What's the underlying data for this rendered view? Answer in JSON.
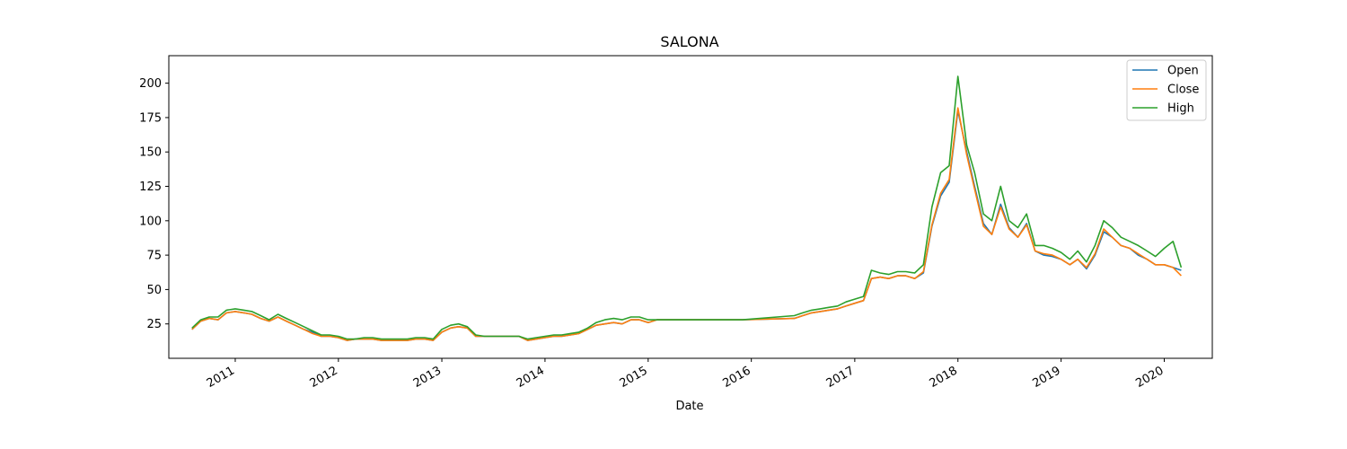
{
  "chart_data": {
    "type": "line",
    "title": "SALONA",
    "xlabel": "Date",
    "ylabel": "",
    "ylim": [
      0,
      220
    ],
    "xlim": [
      "2010-05-11",
      "2020-06-19"
    ],
    "y_ticks": [
      25,
      50,
      75,
      100,
      125,
      150,
      175,
      200
    ],
    "x_ticks": [
      {
        "date": "2011-01-01",
        "label": "2011"
      },
      {
        "date": "2012-01-01",
        "label": "2012"
      },
      {
        "date": "2013-01-01",
        "label": "2013"
      },
      {
        "date": "2014-01-01",
        "label": "2014"
      },
      {
        "date": "2015-01-01",
        "label": "2015"
      },
      {
        "date": "2016-01-01",
        "label": "2016"
      },
      {
        "date": "2017-01-01",
        "label": "2017"
      },
      {
        "date": "2018-01-01",
        "label": "2018"
      },
      {
        "date": "2019-01-01",
        "label": "2019"
      },
      {
        "date": "2020-01-01",
        "label": "2020"
      }
    ],
    "legend_position": "top-right",
    "grid": false,
    "x": [
      "2010-08-01",
      "2010-09-01",
      "2010-10-01",
      "2010-11-01",
      "2010-12-01",
      "2011-01-01",
      "2011-02-01",
      "2011-03-01",
      "2011-04-01",
      "2011-05-01",
      "2011-06-01",
      "2011-07-01",
      "2011-08-01",
      "2011-09-01",
      "2011-10-01",
      "2011-11-01",
      "2011-12-01",
      "2012-01-01",
      "2012-02-01",
      "2012-03-01",
      "2012-04-01",
      "2012-05-01",
      "2012-06-01",
      "2012-07-01",
      "2012-08-01",
      "2012-09-01",
      "2012-10-01",
      "2012-11-01",
      "2012-12-01",
      "2013-01-01",
      "2013-02-01",
      "2013-03-01",
      "2013-04-01",
      "2013-05-01",
      "2013-06-01",
      "2013-07-01",
      "2013-08-01",
      "2013-09-01",
      "2013-10-01",
      "2013-11-01",
      "2013-12-01",
      "2014-01-01",
      "2014-02-01",
      "2014-03-01",
      "2014-04-01",
      "2014-05-01",
      "2014-06-01",
      "2014-07-01",
      "2014-08-01",
      "2014-09-01",
      "2014-10-01",
      "2014-11-01",
      "2014-12-01",
      "2015-01-01",
      "2015-02-01",
      "2015-06-01",
      "2015-12-01",
      "2016-06-01",
      "2016-07-01",
      "2016-08-01",
      "2016-09-01",
      "2016-10-01",
      "2016-11-01",
      "2016-12-01",
      "2017-01-01",
      "2017-02-01",
      "2017-03-01",
      "2017-04-01",
      "2017-05-01",
      "2017-06-01",
      "2017-07-01",
      "2017-08-01",
      "2017-09-01",
      "2017-10-01",
      "2017-11-01",
      "2017-12-01",
      "2018-01-01",
      "2018-02-01",
      "2018-03-01",
      "2018-04-01",
      "2018-05-01",
      "2018-06-01",
      "2018-07-01",
      "2018-08-01",
      "2018-09-01",
      "2018-10-01",
      "2018-11-01",
      "2018-12-01",
      "2019-01-01",
      "2019-02-01",
      "2019-03-01",
      "2019-04-01",
      "2019-05-01",
      "2019-06-01",
      "2019-07-01",
      "2019-08-01",
      "2019-09-01",
      "2019-10-01",
      "2019-11-01",
      "2019-12-01",
      "2020-01-01",
      "2020-02-01",
      "2020-03-01"
    ],
    "series": [
      {
        "name": "Open",
        "color": "#1f77b4",
        "values": [
          21,
          27,
          29,
          28,
          33,
          34,
          33,
          32,
          29,
          27,
          30,
          27,
          24,
          21,
          19,
          16,
          16,
          15,
          13,
          14,
          14,
          14,
          13,
          13,
          13,
          13,
          14,
          14,
          13,
          19,
          22,
          23,
          22,
          16,
          16,
          16,
          16,
          16,
          16,
          13,
          14,
          15,
          16,
          16,
          17,
          18,
          21,
          24,
          25,
          26,
          25,
          28,
          28,
          26,
          28,
          28,
          28,
          29,
          31,
          33,
          34,
          35,
          36,
          38,
          40,
          42,
          58,
          59,
          58,
          60,
          60,
          58,
          62,
          96,
          118,
          128,
          180,
          150,
          125,
          98,
          90,
          112,
          95,
          88,
          98,
          78,
          75,
          74,
          72,
          68,
          72,
          65,
          75,
          92,
          88,
          82,
          80,
          75,
          72,
          68,
          68,
          66,
          64
        ]
      },
      {
        "name": "Close",
        "color": "#ff7f0e",
        "values": [
          21,
          27,
          29,
          28,
          33,
          34,
          33,
          32,
          29,
          27,
          30,
          27,
          24,
          21,
          18,
          16,
          16,
          15,
          13,
          14,
          14,
          14,
          13,
          13,
          13,
          13,
          14,
          14,
          13,
          19,
          22,
          23,
          22,
          16,
          16,
          16,
          16,
          16,
          16,
          13,
          14,
          15,
          16,
          16,
          17,
          18,
          21,
          24,
          25,
          26,
          25,
          28,
          28,
          26,
          28,
          28,
          28,
          29,
          31,
          33,
          34,
          35,
          36,
          38,
          40,
          42,
          58,
          59,
          58,
          60,
          60,
          58,
          63,
          97,
          120,
          130,
          182,
          148,
          123,
          96,
          90,
          110,
          94,
          88,
          97,
          78,
          76,
          75,
          72,
          68,
          72,
          66,
          76,
          94,
          88,
          82,
          80,
          76,
          72,
          68,
          68,
          66,
          60
        ]
      },
      {
        "name": "High",
        "color": "#2ca02c",
        "values": [
          22,
          28,
          30,
          30,
          35,
          36,
          35,
          34,
          31,
          28,
          32,
          29,
          26,
          23,
          20,
          17,
          17,
          16,
          14,
          14,
          15,
          15,
          14,
          14,
          14,
          14,
          15,
          15,
          14,
          21,
          24,
          25,
          23,
          17,
          16,
          16,
          16,
          16,
          16,
          14,
          15,
          16,
          17,
          17,
          18,
          19,
          22,
          26,
          28,
          29,
          28,
          30,
          30,
          28,
          28,
          28,
          28,
          31,
          33,
          35,
          36,
          37,
          38,
          41,
          43,
          45,
          64,
          62,
          61,
          63,
          63,
          62,
          68,
          110,
          135,
          140,
          205,
          155,
          135,
          105,
          100,
          125,
          100,
          95,
          105,
          82,
          82,
          80,
          77,
          72,
          78,
          70,
          82,
          100,
          95,
          88,
          85,
          82,
          78,
          74,
          80,
          85,
          66
        ]
      }
    ]
  }
}
